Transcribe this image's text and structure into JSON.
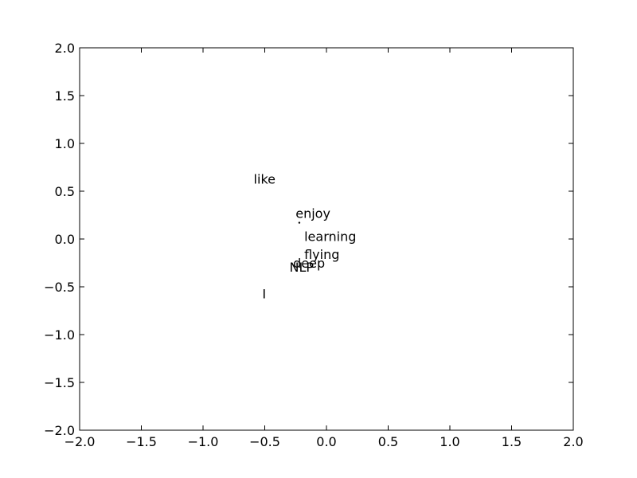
{
  "chart_data": {
    "type": "scatter",
    "title": "",
    "xlabel": "",
    "ylabel": "",
    "xlim": [
      -2.0,
      2.0
    ],
    "ylim": [
      -2.0,
      2.0
    ],
    "grid": false,
    "x_ticks": [
      "−2.0",
      "−1.5",
      "−1.0",
      "−0.5",
      "0.0",
      "0.5",
      "1.0",
      "1.5",
      "2.0"
    ],
    "y_ticks": [
      "2.0",
      "1.5",
      "1.0",
      "0.5",
      "0.0",
      "−0.5",
      "−1.0",
      "−1.5",
      "−2.0"
    ],
    "points": [
      {
        "label": "like",
        "x": -0.59,
        "y": 0.63
      },
      {
        "label": "enjoy",
        "x": -0.25,
        "y": 0.27
      },
      {
        "label": "learning",
        "x": -0.18,
        "y": 0.03
      },
      {
        "label": "flying",
        "x": -0.18,
        "y": -0.16
      },
      {
        "label": "deep",
        "x": -0.27,
        "y": -0.25
      },
      {
        "label": "NLP",
        "x": -0.3,
        "y": -0.29
      },
      {
        "label": "I",
        "x": -0.52,
        "y": -0.57
      }
    ],
    "marker": {
      "x": -0.22,
      "y": 0.17
    }
  }
}
